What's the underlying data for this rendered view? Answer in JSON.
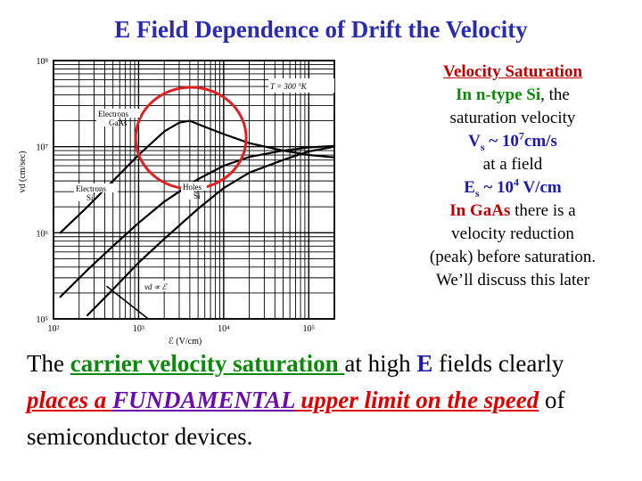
{
  "slide": {
    "title": "E Field Dependence of Drift the Velocity"
  },
  "chart_data": {
    "type": "line",
    "title": "",
    "xlabel": "ℰ (V/cm)",
    "ylabel": "vd (cm/sec)",
    "x_scale": "log",
    "y_scale": "log",
    "xlim": [
      100,
      200000
    ],
    "ylim": [
      100000,
      100000000
    ],
    "x_ticks": [
      {
        "value": 100,
        "label": "10²"
      },
      {
        "value": 1000,
        "label": "10³"
      },
      {
        "value": 10000,
        "label": "10⁴"
      },
      {
        "value": 100000,
        "label": "10⁵"
      }
    ],
    "y_ticks": [
      {
        "value": 100000,
        "label": "10⁵"
      },
      {
        "value": 1000000,
        "label": "10⁶"
      },
      {
        "value": 10000000,
        "label": "10⁷"
      },
      {
        "value": 100000000,
        "label": "10⁸"
      }
    ],
    "grid": true,
    "inset_label": "T = 300 °K",
    "series": [
      {
        "name": "Electrons GaAs",
        "label_lines": [
          "Electrons",
          "GaAs"
        ],
        "x": [
          120,
          250,
          500,
          1000,
          2000,
          3000,
          4000,
          6000,
          10000,
          20000,
          50000,
          100000,
          200000
        ],
        "y": [
          1000000,
          2000000,
          4000000,
          8000000,
          15000000,
          19000000,
          20000000,
          17000000,
          14000000,
          11000000,
          9000000,
          8000000,
          7500000
        ]
      },
      {
        "name": "Electrons Si",
        "label_lines": [
          "Electrons",
          "Si"
        ],
        "x": [
          120,
          250,
          500,
          1000,
          2000,
          5000,
          10000,
          20000,
          50000,
          100000,
          200000
        ],
        "y": [
          180000,
          370000,
          700000,
          1300000,
          2300000,
          4200000,
          6000000,
          7600000,
          9000000,
          9800000,
          10200000
        ]
      },
      {
        "name": "Holes Si",
        "label_lines": [
          "Holes",
          "Si"
        ],
        "x": [
          250,
          500,
          1000,
          2000,
          5000,
          10000,
          20000,
          50000,
          100000,
          200000
        ],
        "y": [
          110000,
          220000,
          450000,
          850000,
          1900000,
          3300000,
          5000000,
          7000000,
          8800000,
          10000000
        ]
      }
    ],
    "annotations": [
      {
        "text": "vd ∝ ℰ",
        "x": 2000,
        "y": 200000
      },
      {
        "text": "",
        "shape": "circle",
        "x": 5000,
        "y": 12000000
      }
    ],
    "colors": {
      "curves": "#000000",
      "circle": "#e02020",
      "grid": "#000000"
    }
  },
  "side": {
    "heading": "Velocity Saturation",
    "line1_bold": "In n-type Si",
    "line1_rest": ", the",
    "line2": "saturation velocity",
    "vs_v": "V",
    "vs_sub": "s",
    "vs_mid": " ~ 10",
    "vs_sup": "7",
    "vs_unit": "cm/s",
    "line4": "at a field",
    "es_e": "E",
    "es_sub": "s",
    "es_mid": " ~ 10",
    "es_sup": "4",
    "es_unit": " V/cm",
    "gaas_bold": "In GaAs",
    "gaas_rest": " there is a",
    "line7": "velocity reduction",
    "line8": "(peak) before saturation.",
    "line9": "We’ll discuss this later"
  },
  "bottom": {
    "t1": "The ",
    "t2": "carrier velocity saturation ",
    "t3": "at high ",
    "t4": "E",
    "t5": " fields clearly ",
    "t6": "places a ",
    "t7": "FUNDAMENTAL",
    "t8": " upper limit on the speed",
    "t9": " of semiconductor devices."
  }
}
